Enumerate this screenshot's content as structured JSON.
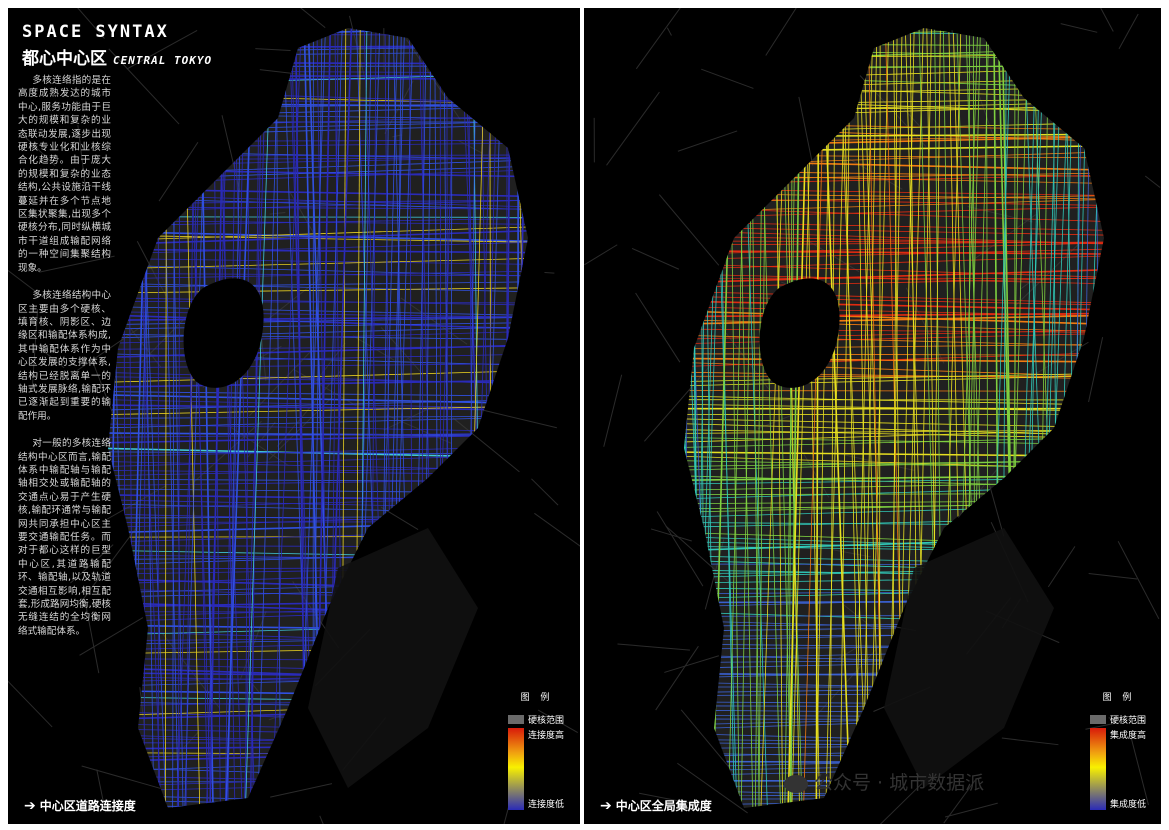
{
  "header": {
    "title_en": "SPACE SYNTAX",
    "title_cn": "都心中心区",
    "subtitle_en": "CENTRAL TOKYO"
  },
  "description": {
    "p1": "多核连络指的是在高度成熟发达的城市中心,服务功能由于巨大的规模和复杂的业态联动发展,逐步出现硬核专业化和业核综合化趋势。由于庞大的规模和复杂的业态结构,公共设施沿干线蔓延并在多个节点地区集状聚集,出现多个硬核分布,同时纵横城市干道组成输配网络的一种空间集聚结构现象。",
    "p2": "多核连络结构中心区主要由多个硬核、填育核、阴影区、边缘区和输配体系构成,其中输配体系作为中心区发展的支撑体系,结构已经脱离单一的轴式发展脉络,输配环已逐渐起到重要的输配作用。",
    "p3": "对一般的多核连络结构中心区而言,输配体系中输配轴与输配轴相交处或输配轴的交通点心易于产生硬核,输配环通常与输配网共同承担中心区主要交通输配任务。而对于都心这样的巨型中心区,其道路输配环、输配轴,以及轨道交通相互影响,相互配套,形成路网均衡,硬核无缝连结的全均衡网络式输配体系。"
  },
  "left_map": {
    "caption": "中心区道路连接度",
    "legend_title": "图 例",
    "legend_core": "硬核范围",
    "legend_high": "连接度高",
    "legend_low": "连接度低"
  },
  "right_map": {
    "caption": "中心区全局集成度",
    "legend_title": "图 例",
    "legend_core": "硬核范围",
    "legend_high": "集成度高",
    "legend_low": "集成度低"
  },
  "watermark": {
    "text": "公众号 · 城市数据派"
  },
  "colors": {
    "background": "#000000",
    "core_area": "#6a6a6a",
    "connectivity_low": "#2a2ad0",
    "integration_high": "#e02a10"
  }
}
